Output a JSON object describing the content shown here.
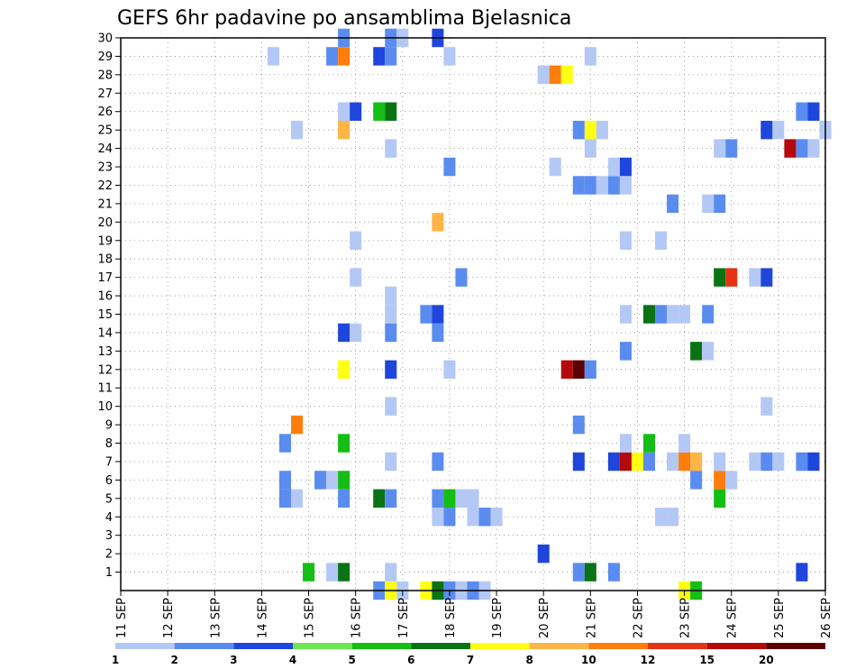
{
  "chart_data": {
    "type": "heatmap",
    "title": "GEFS 6hr padavine po ansamblima Bjelasnica",
    "x_tick_labels": [
      "11 SEP",
      "12 SEP",
      "13 SEP",
      "14 SEP",
      "15 SEP",
      "16 SEP",
      "17 SEP",
      "18 SEP",
      "19 SEP",
      "20 SEP",
      "21 SEP",
      "22 SEP",
      "23 SEP",
      "24 SEP",
      "25 SEP",
      "26 SEP"
    ],
    "y_tick_labels": [
      "1",
      "2",
      "3",
      "4",
      "5",
      "6",
      "7",
      "8",
      "9",
      "10",
      "11",
      "12",
      "13",
      "14",
      "15",
      "16",
      "17",
      "18",
      "19",
      "20",
      "21",
      "22",
      "23",
      "24",
      "25",
      "26",
      "27",
      "28",
      "29",
      "30"
    ],
    "xlim": [
      11,
      26
    ],
    "ylim": [
      0,
      30
    ],
    "grid": true,
    "colorbar": {
      "levels": [
        "1",
        "2",
        "3",
        "4",
        "5",
        "6",
        "7",
        "8",
        "10",
        "12",
        "15",
        "20"
      ],
      "colors": [
        "#b4c8f5",
        "#5a8cf0",
        "#1e46dc",
        "#6ee650",
        "#14be14",
        "#0a7314",
        "#ffff14",
        "#ffb446",
        "#ff7d0a",
        "#e63214",
        "#b40a0a",
        "#5a0000"
      ]
    },
    "cells": [
      {
        "x": 15.0,
        "y": 1,
        "v": 5
      },
      {
        "x": 15.5,
        "y": 1,
        "v": 1
      },
      {
        "x": 15.75,
        "y": 1,
        "v": 6
      },
      {
        "x": 16.75,
        "y": 1,
        "v": 1
      },
      {
        "x": 20.75,
        "y": 1,
        "v": 2
      },
      {
        "x": 21.0,
        "y": 1,
        "v": 6
      },
      {
        "x": 21.5,
        "y": 1,
        "v": 2
      },
      {
        "x": 25.5,
        "y": 1,
        "v": 3
      },
      {
        "x": 16.5,
        "y": 0,
        "v": 2
      },
      {
        "x": 16.75,
        "y": 0,
        "v": 7
      },
      {
        "x": 17.0,
        "y": 0,
        "v": 1
      },
      {
        "x": 17.5,
        "y": 0,
        "v": 7
      },
      {
        "x": 17.75,
        "y": 0,
        "v": 6
      },
      {
        "x": 18.0,
        "y": 0,
        "v": 2
      },
      {
        "x": 18.25,
        "y": 0,
        "v": 1
      },
      {
        "x": 18.5,
        "y": 0,
        "v": 2
      },
      {
        "x": 18.75,
        "y": 0,
        "v": 1
      },
      {
        "x": 23.0,
        "y": 0,
        "v": 7
      },
      {
        "x": 23.25,
        "y": 0,
        "v": 5
      },
      {
        "x": 20.0,
        "y": 2,
        "v": 3
      },
      {
        "x": 17.75,
        "y": 4,
        "v": 1
      },
      {
        "x": 18.0,
        "y": 4,
        "v": 2
      },
      {
        "x": 18.5,
        "y": 4,
        "v": 1
      },
      {
        "x": 18.75,
        "y": 4,
        "v": 2
      },
      {
        "x": 19.0,
        "y": 4,
        "v": 1
      },
      {
        "x": 22.5,
        "y": 4,
        "v": 1
      },
      {
        "x": 22.75,
        "y": 4,
        "v": 1
      },
      {
        "x": 14.5,
        "y": 5,
        "v": 2
      },
      {
        "x": 14.75,
        "y": 5,
        "v": 1
      },
      {
        "x": 15.75,
        "y": 5,
        "v": 2
      },
      {
        "x": 16.5,
        "y": 5,
        "v": 6
      },
      {
        "x": 16.75,
        "y": 5,
        "v": 2
      },
      {
        "x": 17.75,
        "y": 5,
        "v": 2
      },
      {
        "x": 18.0,
        "y": 5,
        "v": 5
      },
      {
        "x": 18.25,
        "y": 5,
        "v": 1
      },
      {
        "x": 18.5,
        "y": 5,
        "v": 1
      },
      {
        "x": 23.75,
        "y": 5,
        "v": 5
      },
      {
        "x": 14.5,
        "y": 6,
        "v": 2
      },
      {
        "x": 15.25,
        "y": 6,
        "v": 2
      },
      {
        "x": 15.5,
        "y": 6,
        "v": 1
      },
      {
        "x": 15.75,
        "y": 6,
        "v": 5
      },
      {
        "x": 23.25,
        "y": 6,
        "v": 2
      },
      {
        "x": 23.75,
        "y": 6,
        "v": 10
      },
      {
        "x": 24.0,
        "y": 6,
        "v": 1
      },
      {
        "x": 16.75,
        "y": 7,
        "v": 1
      },
      {
        "x": 17.75,
        "y": 7,
        "v": 2
      },
      {
        "x": 20.75,
        "y": 7,
        "v": 3
      },
      {
        "x": 21.5,
        "y": 7,
        "v": 3
      },
      {
        "x": 21.75,
        "y": 7,
        "v": 15
      },
      {
        "x": 22.0,
        "y": 7,
        "v": 7
      },
      {
        "x": 22.25,
        "y": 7,
        "v": 2
      },
      {
        "x": 22.75,
        "y": 7,
        "v": 1
      },
      {
        "x": 23.0,
        "y": 7,
        "v": 10
      },
      {
        "x": 23.25,
        "y": 7,
        "v": 8
      },
      {
        "x": 23.75,
        "y": 7,
        "v": 1
      },
      {
        "x": 24.5,
        "y": 7,
        "v": 1
      },
      {
        "x": 24.75,
        "y": 7,
        "v": 2
      },
      {
        "x": 25.0,
        "y": 7,
        "v": 1
      },
      {
        "x": 25.5,
        "y": 7,
        "v": 2
      },
      {
        "x": 25.75,
        "y": 7,
        "v": 3
      },
      {
        "x": 14.5,
        "y": 8,
        "v": 2
      },
      {
        "x": 15.75,
        "y": 8,
        "v": 5
      },
      {
        "x": 21.75,
        "y": 8,
        "v": 1
      },
      {
        "x": 22.25,
        "y": 8,
        "v": 5
      },
      {
        "x": 23.0,
        "y": 8,
        "v": 1
      },
      {
        "x": 14.75,
        "y": 9,
        "v": 10
      },
      {
        "x": 20.75,
        "y": 9,
        "v": 2
      },
      {
        "x": 16.75,
        "y": 10,
        "v": 1
      },
      {
        "x": 24.75,
        "y": 10,
        "v": 1
      },
      {
        "x": 15.75,
        "y": 12,
        "v": 7
      },
      {
        "x": 16.75,
        "y": 12,
        "v": 3
      },
      {
        "x": 18.0,
        "y": 12,
        "v": 1
      },
      {
        "x": 20.5,
        "y": 12,
        "v": 15
      },
      {
        "x": 20.75,
        "y": 12,
        "v": 20
      },
      {
        "x": 21.0,
        "y": 12,
        "v": 2
      },
      {
        "x": 21.75,
        "y": 13,
        "v": 2
      },
      {
        "x": 23.25,
        "y": 13,
        "v": 6
      },
      {
        "x": 23.5,
        "y": 13,
        "v": 1
      },
      {
        "x": 15.75,
        "y": 14,
        "v": 3
      },
      {
        "x": 16.0,
        "y": 14,
        "v": 1
      },
      {
        "x": 16.75,
        "y": 14,
        "v": 2
      },
      {
        "x": 17.75,
        "y": 14,
        "v": 2
      },
      {
        "x": 16.75,
        "y": 15,
        "v": 1
      },
      {
        "x": 17.5,
        "y": 15,
        "v": 2
      },
      {
        "x": 17.75,
        "y": 15,
        "v": 3
      },
      {
        "x": 21.75,
        "y": 15,
        "v": 1
      },
      {
        "x": 22.25,
        "y": 15,
        "v": 6
      },
      {
        "x": 22.5,
        "y": 15,
        "v": 2
      },
      {
        "x": 22.75,
        "y": 15,
        "v": 1
      },
      {
        "x": 23.0,
        "y": 15,
        "v": 1
      },
      {
        "x": 23.5,
        "y": 15,
        "v": 2
      },
      {
        "x": 16.75,
        "y": 16,
        "v": 1
      },
      {
        "x": 16.0,
        "y": 17,
        "v": 1
      },
      {
        "x": 18.25,
        "y": 17,
        "v": 2
      },
      {
        "x": 23.75,
        "y": 17,
        "v": 6
      },
      {
        "x": 24.0,
        "y": 17,
        "v": 12
      },
      {
        "x": 24.5,
        "y": 17,
        "v": 1
      },
      {
        "x": 24.75,
        "y": 17,
        "v": 3
      },
      {
        "x": 16.0,
        "y": 19,
        "v": 1
      },
      {
        "x": 21.75,
        "y": 19,
        "v": 1
      },
      {
        "x": 22.5,
        "y": 19,
        "v": 1
      },
      {
        "x": 17.75,
        "y": 20,
        "v": 8
      },
      {
        "x": 22.75,
        "y": 21,
        "v": 2
      },
      {
        "x": 23.5,
        "y": 21,
        "v": 1
      },
      {
        "x": 23.75,
        "y": 21,
        "v": 2
      },
      {
        "x": 20.75,
        "y": 22,
        "v": 2
      },
      {
        "x": 21.0,
        "y": 22,
        "v": 2
      },
      {
        "x": 21.25,
        "y": 22,
        "v": 1
      },
      {
        "x": 21.5,
        "y": 22,
        "v": 2
      },
      {
        "x": 21.75,
        "y": 22,
        "v": 1
      },
      {
        "x": 18.0,
        "y": 23,
        "v": 2
      },
      {
        "x": 20.25,
        "y": 23,
        "v": 1
      },
      {
        "x": 21.5,
        "y": 23,
        "v": 1
      },
      {
        "x": 21.75,
        "y": 23,
        "v": 3
      },
      {
        "x": 16.75,
        "y": 24,
        "v": 1
      },
      {
        "x": 21.0,
        "y": 24,
        "v": 1
      },
      {
        "x": 23.75,
        "y": 24,
        "v": 1
      },
      {
        "x": 24.0,
        "y": 24,
        "v": 2
      },
      {
        "x": 25.25,
        "y": 24,
        "v": 15
      },
      {
        "x": 25.5,
        "y": 24,
        "v": 2
      },
      {
        "x": 25.75,
        "y": 24,
        "v": 1
      },
      {
        "x": 14.75,
        "y": 25,
        "v": 1
      },
      {
        "x": 15.75,
        "y": 25,
        "v": 8
      },
      {
        "x": 20.75,
        "y": 25,
        "v": 2
      },
      {
        "x": 21.0,
        "y": 25,
        "v": 7
      },
      {
        "x": 21.25,
        "y": 25,
        "v": 1
      },
      {
        "x": 24.75,
        "y": 25,
        "v": 3
      },
      {
        "x": 25.0,
        "y": 25,
        "v": 1
      },
      {
        "x": 26.0,
        "y": 25,
        "v": 1
      },
      {
        "x": 15.75,
        "y": 26,
        "v": 1
      },
      {
        "x": 16.0,
        "y": 26,
        "v": 3
      },
      {
        "x": 16.5,
        "y": 26,
        "v": 5
      },
      {
        "x": 16.75,
        "y": 26,
        "v": 6
      },
      {
        "x": 25.5,
        "y": 26,
        "v": 2
      },
      {
        "x": 25.75,
        "y": 26,
        "v": 3
      },
      {
        "x": 20.0,
        "y": 28,
        "v": 1
      },
      {
        "x": 20.25,
        "y": 28,
        "v": 10
      },
      {
        "x": 20.5,
        "y": 28,
        "v": 7
      },
      {
        "x": 14.25,
        "y": 29,
        "v": 1
      },
      {
        "x": 15.5,
        "y": 29,
        "v": 2
      },
      {
        "x": 15.75,
        "y": 29,
        "v": 10
      },
      {
        "x": 16.5,
        "y": 29,
        "v": 3
      },
      {
        "x": 16.75,
        "y": 29,
        "v": 2
      },
      {
        "x": 18.0,
        "y": 29,
        "v": 1
      },
      {
        "x": 21.0,
        "y": 29,
        "v": 1
      },
      {
        "x": 15.75,
        "y": 30,
        "v": 2
      },
      {
        "x": 16.75,
        "y": 30,
        "v": 2
      },
      {
        "x": 17.0,
        "y": 30,
        "v": 1
      },
      {
        "x": 17.75,
        "y": 30,
        "v": 3
      }
    ]
  }
}
